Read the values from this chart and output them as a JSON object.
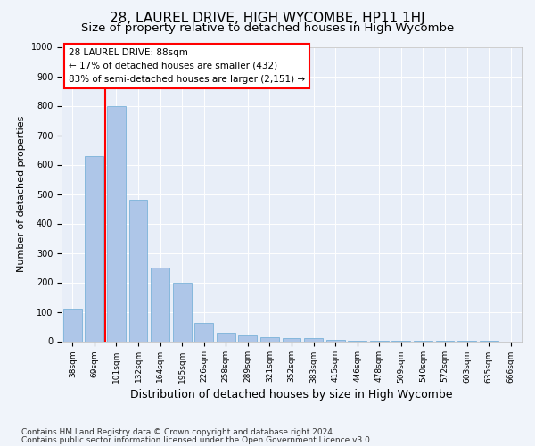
{
  "title": "28, LAUREL DRIVE, HIGH WYCOMBE, HP11 1HJ",
  "subtitle": "Size of property relative to detached houses in High Wycombe",
  "xlabel": "Distribution of detached houses by size in High Wycombe",
  "ylabel": "Number of detached properties",
  "footnote1": "Contains HM Land Registry data © Crown copyright and database right 2024.",
  "footnote2": "Contains public sector information licensed under the Open Government Licence v3.0.",
  "annotation_line1": "28 LAUREL DRIVE: 88sqm",
  "annotation_line2": "← 17% of detached houses are smaller (432)",
  "annotation_line3": "83% of semi-detached houses are larger (2,151) →",
  "bar_labels": [
    "38sqm",
    "69sqm",
    "101sqm",
    "132sqm",
    "164sqm",
    "195sqm",
    "226sqm",
    "258sqm",
    "289sqm",
    "321sqm",
    "352sqm",
    "383sqm",
    "415sqm",
    "446sqm",
    "478sqm",
    "509sqm",
    "540sqm",
    "572sqm",
    "603sqm",
    "635sqm",
    "666sqm"
  ],
  "bar_values": [
    110,
    630,
    800,
    480,
    250,
    200,
    62,
    28,
    20,
    15,
    10,
    10,
    5,
    2,
    2,
    1,
    1,
    1,
    1,
    1,
    0
  ],
  "bar_color": "#aec6e8",
  "bar_edgecolor": "#6aaad4",
  "vline_color": "red",
  "vline_x": 1.5,
  "ylim": [
    0,
    1000
  ],
  "yticks": [
    0,
    100,
    200,
    300,
    400,
    500,
    600,
    700,
    800,
    900,
    1000
  ],
  "background_color": "#f0f4fa",
  "plot_bg_color": "#e8eef8",
  "title_fontsize": 11,
  "subtitle_fontsize": 9.5,
  "xlabel_fontsize": 9,
  "ylabel_fontsize": 8,
  "tick_fontsize": 7,
  "annotation_fontsize": 7.5,
  "footnote_fontsize": 6.5
}
